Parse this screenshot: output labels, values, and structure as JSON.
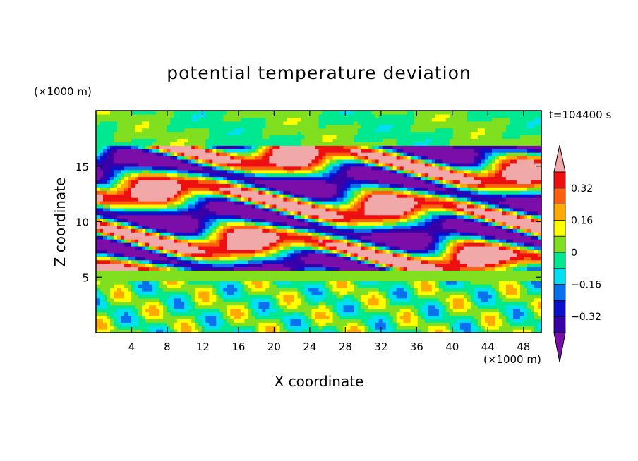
{
  "chart_data": {
    "type": "heatmap",
    "title": "potential temperature deviation",
    "xlabel": "X coordinate",
    "ylabel": "Z coordinate",
    "x_unit_label": "(×1000 m)",
    "y_unit_label": "(×1000 m)",
    "time_label": "t=104400 s",
    "xlim": [
      0,
      50
    ],
    "ylim": [
      0,
      20
    ],
    "x_ticks": [
      "4",
      "8",
      "12",
      "16",
      "20",
      "24",
      "28",
      "32",
      "36",
      "40",
      "44",
      "48"
    ],
    "y_ticks": [
      "5",
      "10",
      "15"
    ],
    "colorbar": {
      "tick_labels": [
        "0.32",
        "0.16",
        "0",
        "−0.16",
        "−0.32"
      ],
      "levels": [
        -0.4,
        -0.32,
        -0.24,
        -0.16,
        -0.08,
        0,
        0.08,
        0.16,
        0.24,
        0.32,
        0.4
      ],
      "colors": [
        "#7b0ea8",
        "#3a00a8",
        "#0a10cc",
        "#0a70ee",
        "#00e0f0",
        "#00e890",
        "#80e020",
        "#ffff00",
        "#ffaa00",
        "#ff6010",
        "#ee1010",
        "#f0a8a8"
      ],
      "extend": "both"
    },
    "field_description_note": null
  }
}
